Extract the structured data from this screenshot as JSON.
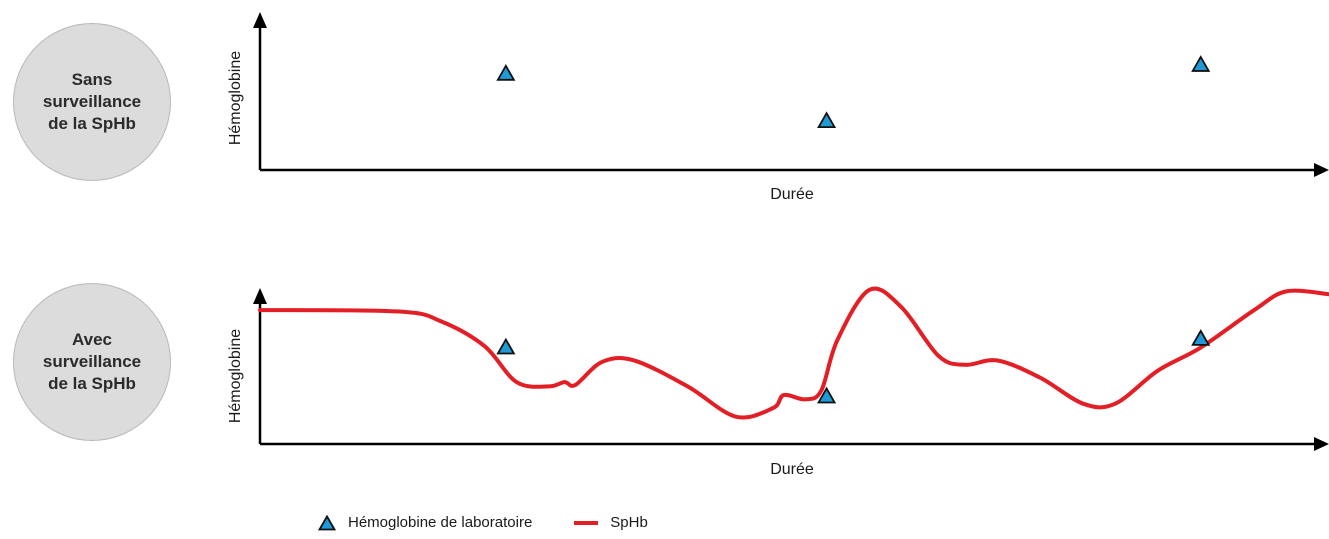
{
  "panels": [
    {
      "badge_label": "Sans\nsurveillance\nde la SpHb"
    },
    {
      "badge_label": "Avec\nsurveillance\nde la SpHb"
    }
  ],
  "legend": {
    "lab_label": "Hémoglobine de laboratoire",
    "sphb_label": "SpHb"
  },
  "colors": {
    "marker_fill": "#1e9ad6",
    "sphb_line": "#e31e24",
    "axis": "#000000",
    "badge": "#dcdcdc"
  },
  "chart_data": [
    {
      "type": "scatter",
      "xlabel": "Durée",
      "ylabel": "Hémoglobine",
      "xlim": [
        0,
        100
      ],
      "ylim": [
        0,
        100
      ],
      "grid": false,
      "series": [
        {
          "name": "Hémoglobine de laboratoire",
          "marker": "triangle",
          "points": [
            {
              "x": 23,
              "y": 65
            },
            {
              "x": 53,
              "y": 33
            },
            {
              "x": 88,
              "y": 71
            }
          ]
        }
      ]
    },
    {
      "type": "line",
      "xlabel": "Durée",
      "ylabel": "Hémoglobine",
      "xlim": [
        0,
        100
      ],
      "ylim": [
        0,
        100
      ],
      "grid": false,
      "series": [
        {
          "name": "SpHb",
          "points": [
            {
              "x": 0,
              "y": 93
            },
            {
              "x": 13,
              "y": 92
            },
            {
              "x": 17,
              "y": 85
            },
            {
              "x": 21,
              "y": 68
            },
            {
              "x": 24,
              "y": 43
            },
            {
              "x": 27,
              "y": 40
            },
            {
              "x": 28.5,
              "y": 43
            },
            {
              "x": 29.5,
              "y": 41
            },
            {
              "x": 32,
              "y": 57
            },
            {
              "x": 35,
              "y": 58
            },
            {
              "x": 40,
              "y": 40
            },
            {
              "x": 44.5,
              "y": 19
            },
            {
              "x": 48,
              "y": 25
            },
            {
              "x": 49,
              "y": 34
            },
            {
              "x": 51,
              "y": 31
            },
            {
              "x": 52.5,
              "y": 37
            },
            {
              "x": 54,
              "y": 72
            },
            {
              "x": 57,
              "y": 107
            },
            {
              "x": 60,
              "y": 95
            },
            {
              "x": 63.5,
              "y": 61
            },
            {
              "x": 66,
              "y": 55
            },
            {
              "x": 69,
              "y": 58
            },
            {
              "x": 73,
              "y": 46
            },
            {
              "x": 77,
              "y": 28
            },
            {
              "x": 80,
              "y": 28
            },
            {
              "x": 84,
              "y": 51
            },
            {
              "x": 88,
              "y": 67
            },
            {
              "x": 93,
              "y": 93
            },
            {
              "x": 96,
              "y": 106
            },
            {
              "x": 100,
              "y": 104
            }
          ]
        },
        {
          "name": "Hémoglobine de laboratoire",
          "marker": "triangle",
          "points": [
            {
              "x": 23,
              "y": 67
            },
            {
              "x": 53,
              "y": 33
            },
            {
              "x": 88,
              "y": 73
            }
          ]
        }
      ]
    }
  ]
}
